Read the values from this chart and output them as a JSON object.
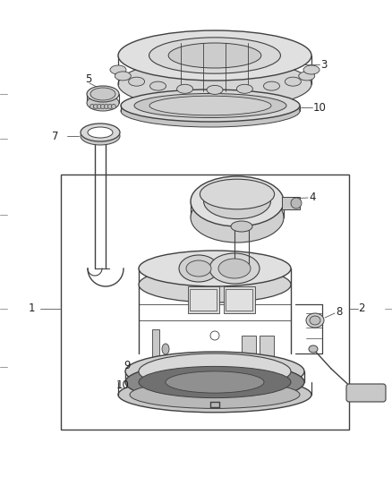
{
  "bg_color": "#ffffff",
  "line_color": "#404040",
  "label_color": "#222222",
  "font_size": 8.5,
  "fig_w": 4.38,
  "fig_h": 5.33,
  "dpi": 100
}
